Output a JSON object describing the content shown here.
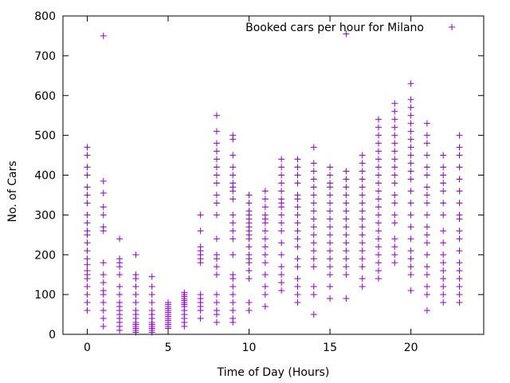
{
  "chart_data": {
    "type": "scatter",
    "title": "",
    "xlabel": "Time of Day (Hours)",
    "ylabel": "No. of Cars",
    "xlim": [
      -1.5,
      24.5
    ],
    "ylim": [
      0,
      800
    ],
    "xticks": [
      0,
      5,
      10,
      15,
      20
    ],
    "yticks": [
      0,
      100,
      200,
      300,
      400,
      500,
      600,
      700,
      800
    ],
    "grid": false,
    "legend_position": "top-right",
    "marker": "+",
    "color": "#9400d3",
    "series": [
      {
        "name": "Booked cars per hour for Milano",
        "points": [
          {
            "hour": 0,
            "values": [
              60,
              80,
              100,
              120,
              140,
              150,
              160,
              175,
              190,
              210,
              230,
              250,
              260,
              280,
              300,
              330,
              350,
              370,
              400,
              420,
              450,
              470
            ]
          },
          {
            "hour": 1,
            "values": [
              20,
              40,
              60,
              80,
              100,
              110,
              130,
              150,
              180,
              260,
              270,
              300,
              320,
              355,
              385,
              750
            ]
          },
          {
            "hour": 2,
            "values": [
              10,
              20,
              30,
              40,
              50,
              60,
              70,
              80,
              100,
              120,
              150,
              170,
              180,
              190,
              240
            ]
          },
          {
            "hour": 3,
            "values": [
              5,
              10,
              15,
              20,
              25,
              30,
              40,
              50,
              60,
              80,
              100,
              120,
              140,
              150,
              200
            ]
          },
          {
            "hour": 4,
            "values": [
              5,
              10,
              15,
              20,
              25,
              30,
              40,
              50,
              60,
              80,
              100,
              120,
              145
            ]
          },
          {
            "hour": 5,
            "values": [
              15,
              20,
              25,
              30,
              35,
              40,
              45,
              50,
              55,
              60,
              65,
              70,
              75,
              80
            ]
          },
          {
            "hour": 6,
            "values": [
              20,
              30,
              40,
              50,
              60,
              70,
              75,
              80,
              85,
              90,
              95,
              100,
              105
            ]
          },
          {
            "hour": 7,
            "values": [
              40,
              60,
              70,
              80,
              90,
              100,
              180,
              190,
              200,
              210,
              220,
              260,
              300
            ]
          },
          {
            "hour": 8,
            "values": [
              30,
              50,
              60,
              80,
              100,
              150,
              170,
              190,
              200,
              240,
              300,
              330,
              350,
              380,
              400,
              420,
              440,
              460,
              480,
              510,
              550
            ]
          },
          {
            "hour": 9,
            "values": [
              30,
              40,
              60,
              80,
              100,
              120,
              140,
              150,
              200,
              240,
              260,
              280,
              300,
              340,
              360,
              370,
              380,
              400,
              420,
              450,
              490,
              500
            ]
          },
          {
            "hour": 10,
            "values": [
              60,
              80,
              140,
              160,
              180,
              190,
              200,
              220,
              240,
              250,
              260,
              270,
              280,
              290,
              300,
              310,
              330,
              350
            ]
          },
          {
            "hour": 11,
            "values": [
              70,
              100,
              120,
              150,
              180,
              200,
              220,
              240,
              260,
              280,
              290,
              300,
              320,
              340,
              360
            ]
          },
          {
            "hour": 12,
            "values": [
              110,
              130,
              150,
              170,
              200,
              230,
              260,
              280,
              300,
              320,
              330,
              340,
              360,
              380,
              400,
              420,
              440
            ]
          },
          {
            "hour": 13,
            "values": [
              80,
              100,
              120,
              140,
              170,
              190,
              220,
              240,
              260,
              280,
              300,
              320,
              340,
              350,
              380,
              400,
              420,
              440
            ]
          },
          {
            "hour": 14,
            "values": [
              50,
              100,
              120,
              170,
              190,
              210,
              230,
              250,
              270,
              290,
              310,
              330,
              350,
              370,
              390,
              410,
              430,
              470
            ]
          },
          {
            "hour": 15,
            "values": [
              90,
              120,
              150,
              170,
              190,
              210,
              230,
              250,
              270,
              290,
              310,
              330,
              350,
              370,
              380,
              400,
              420
            ]
          },
          {
            "hour": 16,
            "values": [
              90,
              150,
              170,
              190,
              210,
              230,
              250,
              270,
              290,
              310,
              330,
              350,
              370,
              390,
              410,
              755
            ]
          },
          {
            "hour": 17,
            "values": [
              120,
              140,
              170,
              190,
              210,
              230,
              250,
              270,
              290,
              310,
              330,
              350,
              370,
              390,
              410,
              430,
              450
            ]
          },
          {
            "hour": 18,
            "values": [
              140,
              160,
              180,
              200,
              220,
              240,
              260,
              280,
              300,
              320,
              340,
              360,
              380,
              400,
              420,
              440,
              460,
              480,
              500,
              520,
              540
            ]
          },
          {
            "hour": 19,
            "values": [
              180,
              200,
              220,
              240,
              280,
              300,
              330,
              350,
              380,
              400,
              420,
              440,
              460,
              480,
              500,
              520,
              540,
              560,
              580
            ]
          },
          {
            "hour": 20,
            "values": [
              110,
              150,
              170,
              190,
              210,
              240,
              270,
              300,
              330,
              360,
              390,
              410,
              430,
              450,
              470,
              490,
              510,
              530,
              550,
              570,
              590,
              630
            ]
          },
          {
            "hour": 21,
            "values": [
              60,
              100,
              120,
              150,
              170,
              200,
              230,
              250,
              270,
              300,
              330,
              350,
              370,
              400,
              420,
              450,
              480,
              500,
              530
            ]
          },
          {
            "hour": 22,
            "values": [
              80,
              100,
              120,
              140,
              160,
              180,
              200,
              230,
              260,
              300,
              330,
              360,
              380,
              400,
              420,
              450
            ]
          },
          {
            "hour": 23,
            "values": [
              80,
              100,
              120,
              140,
              160,
              180,
              210,
              240,
              260,
              290,
              300,
              330,
              360,
              390,
              420,
              450,
              470,
              500
            ]
          }
        ]
      }
    ]
  }
}
